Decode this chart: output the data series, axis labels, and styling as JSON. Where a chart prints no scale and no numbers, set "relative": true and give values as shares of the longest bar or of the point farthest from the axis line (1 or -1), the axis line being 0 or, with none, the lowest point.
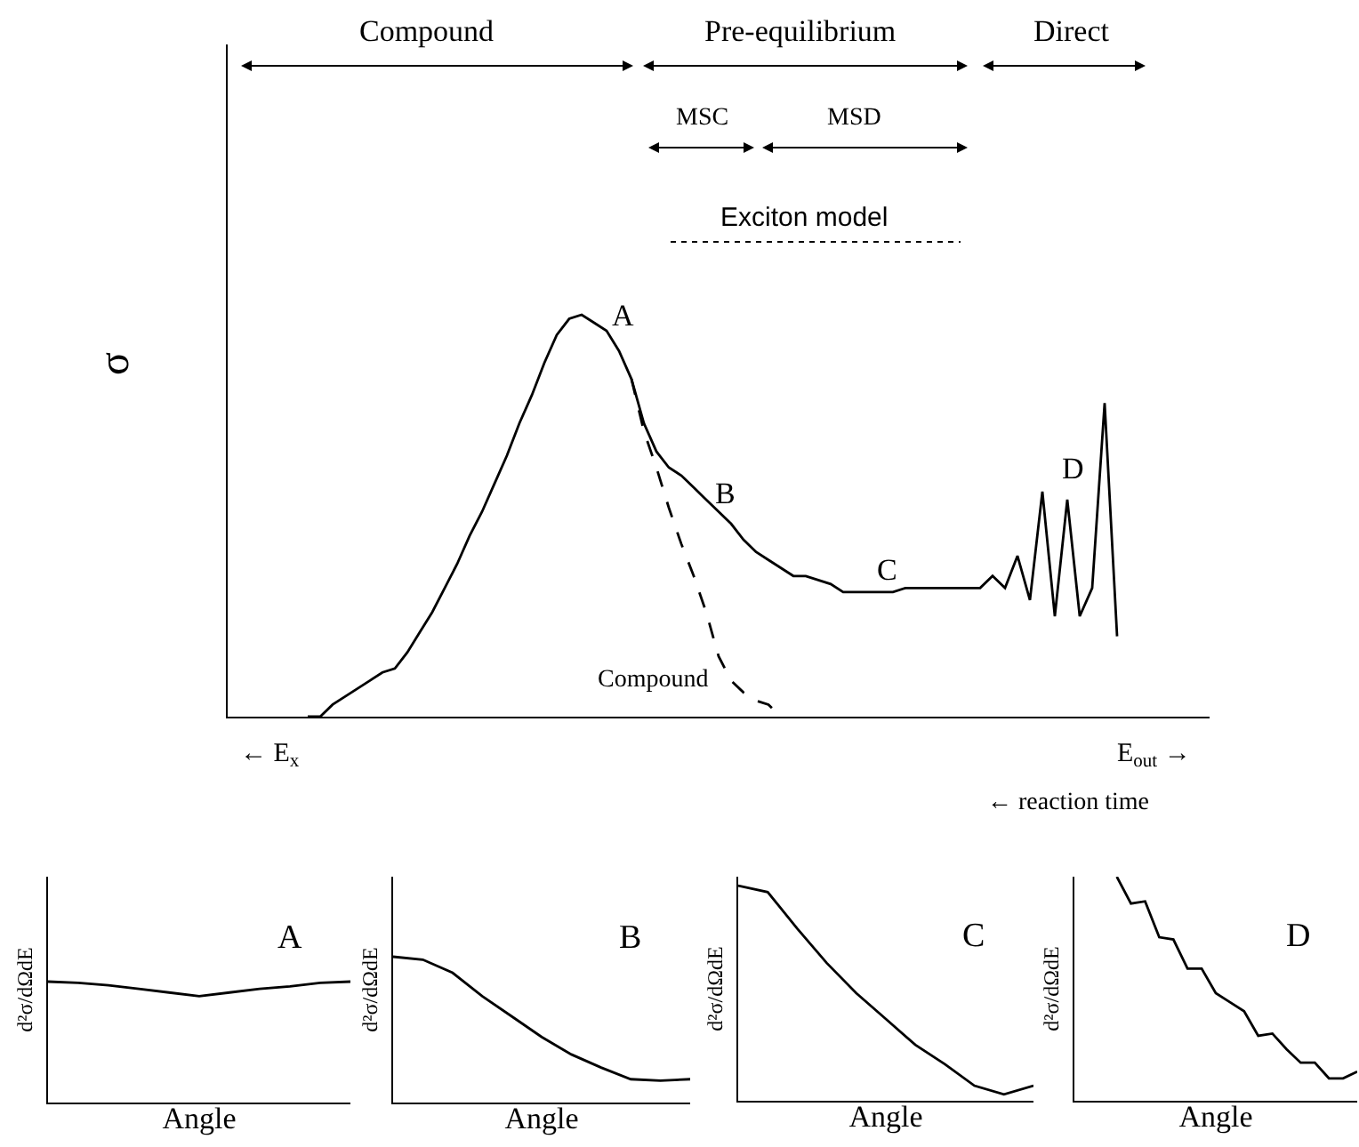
{
  "chart_data": [
    {
      "type": "line",
      "relative": true,
      "ylabel": "σ",
      "tick_labels": false,
      "categories": [
        null,
        null,
        null,
        null,
        null,
        null,
        null,
        null,
        null,
        null,
        null,
        null,
        null,
        null,
        null,
        null,
        null,
        null,
        null,
        null,
        null,
        null,
        null,
        null,
        null,
        null,
        null,
        null,
        null,
        null,
        null,
        null,
        null,
        null,
        null,
        null,
        null,
        null,
        null,
        null,
        null,
        null,
        null,
        null,
        null,
        null,
        null,
        null,
        null,
        null,
        null,
        null,
        null,
        null,
        null,
        null,
        null,
        null,
        null,
        null,
        null,
        null,
        null,
        null,
        null,
        null
      ],
      "series": [
        {
          "color": "#000000",
          "line_style": "solid",
          "values": [
            0,
            0,
            0.03,
            0.05,
            0.07,
            0.09,
            0.11,
            0.12,
            0.16,
            0.21,
            0.26,
            0.32,
            0.38,
            0.45,
            0.51,
            0.58,
            0.65,
            0.73,
            0.8,
            0.88,
            0.95,
            0.99,
            1,
            0.98,
            0.96,
            0.91,
            0.84,
            0.73,
            0.66,
            0.62,
            0.6,
            0.57,
            0.54,
            0.51,
            0.48,
            0.44,
            0.41,
            0.39,
            0.37,
            0.35,
            0.35,
            0.34,
            0.33,
            0.31,
            0.31,
            0.31,
            0.31,
            0.31,
            0.32,
            0.32,
            0.32,
            0.32,
            0.32,
            0.32,
            0.32,
            0.35,
            0.32,
            0.4,
            0.29,
            0.56,
            0.25,
            0.54,
            0.25,
            0.32,
            0.78,
            0.2
          ]
        },
        {
          "color": "#000000",
          "line_style": "dashed",
          "values": [
            null,
            null,
            null,
            null,
            null,
            null,
            null,
            null,
            null,
            null,
            null,
            null,
            null,
            null,
            null,
            null,
            null,
            null,
            null,
            null,
            null,
            null,
            null,
            null,
            null,
            null,
            0.84,
            0.71,
            0.62,
            0.52,
            0.43,
            0.35,
            0.26,
            0.15,
            0.09,
            0.06,
            0.04,
            0.03,
            0,
            null,
            null,
            null,
            null,
            null,
            null,
            null,
            null,
            null,
            null,
            null,
            null,
            null,
            null,
            null,
            null,
            null,
            null,
            null,
            null,
            null,
            null,
            null,
            null,
            null,
            null,
            null
          ]
        }
      ],
      "annotations": [
        "Compound",
        "Pre-equilibrium",
        "Direct",
        "MSC",
        "MSD",
        "Exciton model",
        "A",
        "B",
        "C",
        "D",
        "Compound",
        "← E$_{x}$",
        "E$_{out}$ →",
        "← reaction time"
      ]
    },
    {
      "type": "line",
      "relative": true,
      "xlabel": "Angle",
      "ylabel": "d²σ/dΩdE",
      "tick_labels": false,
      "categories": [
        null,
        null,
        null,
        null,
        null,
        null,
        null,
        null,
        null,
        null,
        null
      ],
      "series": [
        {
          "color": "#000000",
          "values": [
            1,
            0.99,
            0.97,
            0.94,
            0.91,
            0.88,
            0.91,
            0.94,
            0.96,
            0.99,
            1.0
          ]
        }
      ],
      "annotations": [
        "A"
      ]
    },
    {
      "type": "line",
      "relative": true,
      "xlabel": "Angle",
      "ylabel": "d²σ/dΩdE",
      "tick_labels": false,
      "categories": [
        null,
        null,
        null,
        null,
        null,
        null,
        null,
        null,
        null,
        null,
        null
      ],
      "series": [
        {
          "color": "#000000",
          "values": [
            1,
            0.98,
            0.89,
            0.73,
            0.59,
            0.45,
            0.33,
            0.24,
            0.16,
            0.15,
            0.16
          ]
        }
      ],
      "annotations": [
        "B"
      ]
    },
    {
      "type": "line",
      "relative": true,
      "xlabel": "Angle",
      "ylabel": "d²σ/dΩdE",
      "tick_labels": false,
      "categories": [
        null,
        null,
        null,
        null,
        null,
        null,
        null,
        null,
        null,
        null,
        null
      ],
      "series": [
        {
          "color": "#000000",
          "values": [
            1,
            0.97,
            0.8,
            0.64,
            0.5,
            0.38,
            0.26,
            0.17,
            0.07,
            0.03,
            0.07
          ]
        }
      ],
      "annotations": [
        "C"
      ]
    },
    {
      "type": "line",
      "relative": true,
      "xlabel": "Angle",
      "ylabel": "d²σ/dΩdE",
      "tick_labels": false,
      "categories": [
        null,
        null,
        null,
        null,
        null,
        null,
        null,
        null,
        null,
        null,
        null,
        null,
        null,
        null,
        null,
        null,
        null,
        null,
        null,
        null,
        null
      ],
      "series": [
        {
          "color": "#000000",
          "values": [
            null,
            null,
            null,
            1,
            0.88,
            0.89,
            0.73,
            0.72,
            0.59,
            0.59,
            0.48,
            0.44,
            0.4,
            0.29,
            0.3,
            0.23,
            0.17,
            0.17,
            0.1,
            0.1,
            0.13
          ]
        }
      ],
      "annotations": [
        "D"
      ]
    }
  ]
}
